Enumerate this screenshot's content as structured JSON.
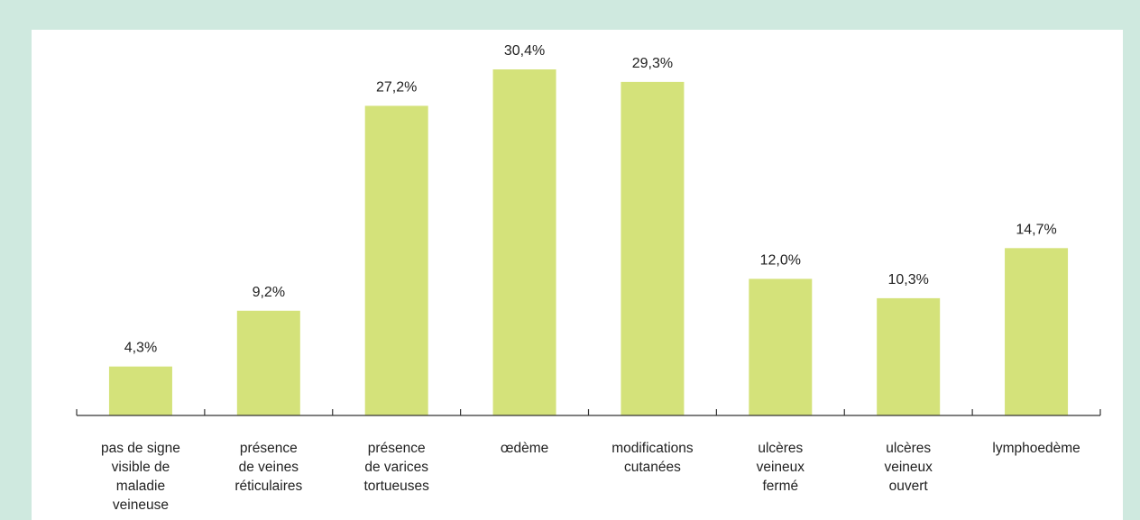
{
  "chart_data": {
    "type": "bar",
    "categories": [
      "pas de signe\nvisible de\nmaladie\nveineuse",
      "présence\nde veines\nréticulaires",
      "présence\nde varices\ntortueuses",
      "œdème",
      "modifications\ncutanées",
      "ulcères\nveineux\nfermé",
      "ulcères\nveineux\nouvert",
      "lymphoedème"
    ],
    "values": [
      4.3,
      9.2,
      27.2,
      30.4,
      29.3,
      12.0,
      10.3,
      14.7
    ],
    "value_labels": [
      "4,3%",
      "9,2%",
      "27,2%",
      "30,4%",
      "29,3%",
      "12,0%",
      "10,3%",
      "14,7%"
    ],
    "ylim": [
      0,
      35
    ],
    "grid": false,
    "colors": {
      "bar": "#d4e27a",
      "axis": "#333333",
      "frame": "#cfe9df"
    }
  }
}
